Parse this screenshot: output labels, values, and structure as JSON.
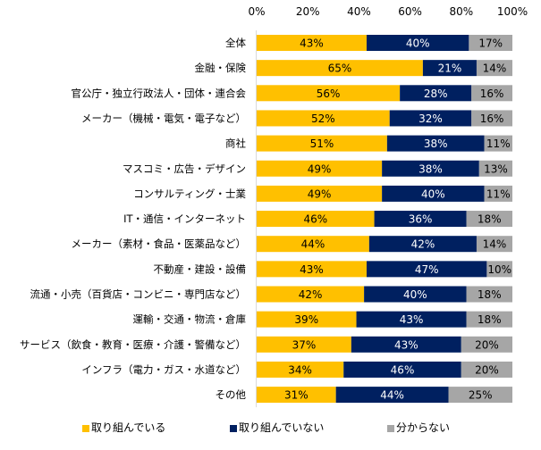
{
  "chart_data": {
    "type": "bar",
    "orientation": "horizontal",
    "stacked": true,
    "title": "",
    "xlabel": "",
    "ylabel": "",
    "xlim": [
      0,
      100
    ],
    "x_ticks": [
      "0%",
      "20%",
      "40%",
      "60%",
      "80%",
      "100%"
    ],
    "x_tick_values": [
      0,
      20,
      40,
      60,
      80,
      100
    ],
    "x_axis_position": "top",
    "grid": false,
    "legend_position": "bottom",
    "categories": [
      "全体",
      "金融・保険",
      "官公庁・独立行政法人・団体・連合会",
      "メーカー（機械・電気・電子など）",
      "商社",
      "マスコミ・広告・デザイン",
      "コンサルティング・士業",
      "IT・通信・インターネット",
      "メーカー（素材・食品・医薬品など）",
      "不動産・建設・設備",
      "流通・小売（百貨店・コンビニ・専門店など）",
      "運輸・交通・物流・倉庫",
      "サービス（飲食・教育・医療・介護・警備など）",
      "インフラ（電力・ガス・水道など）",
      "その他"
    ],
    "series": [
      {
        "name": "取り組んでいる",
        "color": "#FFC000",
        "label_color": "#000000",
        "values": [
          43,
          65,
          56,
          52,
          51,
          49,
          49,
          46,
          44,
          43,
          42,
          39,
          37,
          34,
          31
        ]
      },
      {
        "name": "取り組んでいない",
        "color": "#002060",
        "label_color": "#FFFFFF",
        "values": [
          40,
          21,
          28,
          32,
          38,
          38,
          40,
          36,
          42,
          47,
          40,
          43,
          43,
          46,
          44
        ]
      },
      {
        "name": "分からない",
        "color": "#A6A6A6",
        "label_color": "#000000",
        "values": [
          17,
          14,
          16,
          16,
          11,
          13,
          11,
          18,
          14,
          10,
          18,
          18,
          20,
          20,
          25
        ]
      }
    ],
    "value_suffix": "%"
  }
}
